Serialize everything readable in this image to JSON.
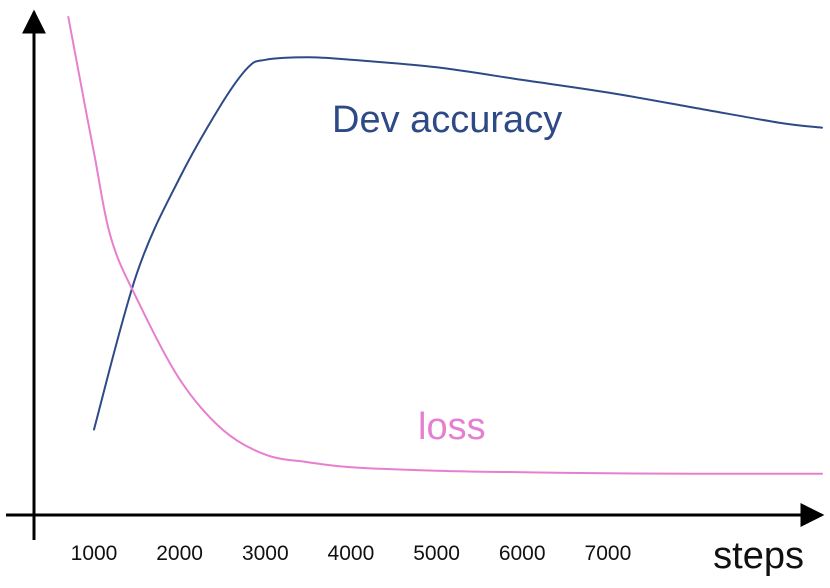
{
  "chart_data": {
    "type": "line",
    "xlabel": "steps",
    "ylabel": "",
    "x_ticks": [
      1000,
      2000,
      3000,
      4000,
      5000,
      6000,
      7000
    ],
    "xlim": [
      300,
      9500
    ],
    "ylim": [
      0,
      1
    ],
    "grid": false,
    "legend": "none",
    "series": [
      {
        "name": "Dev accuracy",
        "color": "#2e4a86",
        "x": [
          1000,
          1500,
          2000,
          2500,
          2800,
          3000,
          3500,
          4000,
          5000,
          6000,
          7000,
          8000,
          9000,
          9500
        ],
        "values": [
          0.17,
          0.48,
          0.67,
          0.82,
          0.89,
          0.905,
          0.91,
          0.905,
          0.89,
          0.865,
          0.84,
          0.81,
          0.78,
          0.77
        ]
      },
      {
        "name": "loss",
        "color": "#e77fd0",
        "x": [
          700,
          800,
          1000,
          1200,
          1500,
          2000,
          2500,
          3000,
          3500,
          4000,
          5000,
          6000,
          7000,
          8000,
          9500
        ],
        "values": [
          0.99,
          0.9,
          0.72,
          0.55,
          0.43,
          0.27,
          0.17,
          0.12,
          0.105,
          0.095,
          0.088,
          0.085,
          0.083,
          0.082,
          0.082
        ]
      }
    ]
  }
}
